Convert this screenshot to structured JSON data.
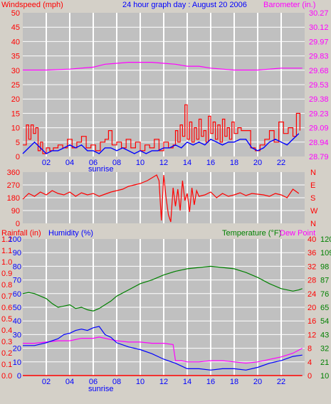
{
  "colors": {
    "background": "#d4d0c8",
    "plot_bg": "#c0c0c0",
    "grid": "#ffffff",
    "wind": "#ff0000",
    "gust": "#0000ff",
    "barometer": "#ff00ff",
    "direction": "#ff0000",
    "rain": "#ff0000",
    "humidity": "#0000ff",
    "temperature": "#008000",
    "dewpoint": "#ff00ff",
    "title": "#0000ff"
  },
  "header": {
    "windspeed_label": "Windspeed (mph)",
    "title": "24 hour graph day : August 20 2006",
    "barometer_label": "Barometer (in.)"
  },
  "bottom_header": {
    "rainfall_label": "Rainfall (in)",
    "humidity_label": "Humidity (%)",
    "temperature_label": "Temperature (°F)",
    "dewpoint_label": "Dew Point"
  },
  "sunrise_label": "sunrise",
  "chart_data": [
    {
      "type": "line",
      "title": "24 hour graph day : August 20 2006",
      "xlabel": "",
      "x_ticks": [
        "02",
        "04",
        "06",
        "08",
        "10",
        "12",
        "14",
        "16",
        "18",
        "20",
        "22"
      ],
      "xlim": [
        0,
        24
      ],
      "y_left": {
        "label": "Windspeed (mph)",
        "ticks": [
          "0",
          "5",
          "10",
          "15",
          "20",
          "25",
          "30",
          "35",
          "40",
          "45",
          "50"
        ],
        "ylim": [
          0,
          50
        ]
      },
      "y_right": {
        "label": "Barometer (in.)",
        "ticks": [
          "28.79",
          "28.94",
          "29.09",
          "29.23",
          "29.38",
          "29.53",
          "29.68",
          "29.83",
          "29.97",
          "30.12",
          "30.27"
        ],
        "ylim": [
          28.79,
          30.27
        ]
      },
      "series": [
        {
          "name": "Windspeed",
          "axis": "left",
          "x": [
            0.0,
            0.3,
            0.5,
            0.7,
            0.9,
            1.1,
            1.3,
            1.5,
            1.7,
            2.0,
            2.3,
            2.6,
            3.0,
            3.4,
            3.8,
            4.2,
            4.6,
            5.0,
            5.4,
            5.8,
            6.2,
            6.6,
            7.0,
            7.3,
            7.6,
            8.0,
            8.4,
            8.8,
            9.2,
            9.6,
            10.0,
            10.4,
            10.8,
            11.2,
            11.6,
            12.0,
            12.4,
            12.8,
            13.0,
            13.2,
            13.4,
            13.6,
            13.8,
            14.0,
            14.2,
            14.4,
            14.6,
            14.8,
            15.0,
            15.2,
            15.4,
            15.6,
            15.8,
            16.0,
            16.2,
            16.4,
            16.6,
            16.8,
            17.0,
            17.2,
            17.4,
            17.6,
            17.8,
            18.0,
            18.3,
            18.6,
            19.0,
            19.4,
            19.8,
            20.2,
            20.6,
            21.0,
            21.4,
            21.8,
            22.2,
            22.6,
            23.0,
            23.3,
            23.6
          ],
          "values": [
            4,
            11,
            6,
            11,
            8,
            10,
            2,
            5,
            1,
            3,
            2,
            3,
            4,
            3,
            6,
            3,
            5,
            7,
            3,
            4,
            2,
            5,
            6,
            9,
            4,
            5,
            3,
            6,
            3,
            5,
            2,
            4,
            3,
            6,
            2,
            5,
            3,
            4,
            9,
            5,
            11,
            7,
            18,
            6,
            12,
            5,
            10,
            6,
            13,
            7,
            9,
            5,
            14,
            8,
            12,
            6,
            11,
            5,
            13,
            7,
            10,
            6,
            12,
            8,
            10,
            9,
            9,
            3,
            2,
            4,
            6,
            9,
            5,
            12,
            8,
            10,
            7,
            15,
            9
          ]
        },
        {
          "name": "Gust",
          "axis": "left",
          "x": [
            0.0,
            0.5,
            1.0,
            1.5,
            2.0,
            2.5,
            3.0,
            3.5,
            4.0,
            4.5,
            5.0,
            5.5,
            6.0,
            6.5,
            7.0,
            7.5,
            8.0,
            8.5,
            9.0,
            9.5,
            10.0,
            10.5,
            11.0,
            11.5,
            12.0,
            12.5,
            13.0,
            13.5,
            14.0,
            14.5,
            15.0,
            15.5,
            16.0,
            16.5,
            17.0,
            17.5,
            18.0,
            18.5,
            19.0,
            19.5,
            20.0,
            20.5,
            21.0,
            21.5,
            22.0,
            22.5,
            23.0,
            23.5
          ],
          "values": [
            1,
            3,
            5,
            3,
            1,
            2,
            2,
            3,
            4,
            3,
            4,
            2,
            2,
            1,
            3,
            3,
            2,
            3,
            2,
            1,
            2,
            1,
            2,
            2,
            3,
            3,
            4,
            3,
            5,
            4,
            5,
            4,
            6,
            5,
            4,
            5,
            5,
            6,
            6,
            3,
            2,
            3,
            5,
            6,
            5,
            4,
            6,
            8
          ]
        },
        {
          "name": "Barometer",
          "axis": "right",
          "x": [
            0.0,
            2.0,
            4.0,
            6.0,
            7.0,
            8.0,
            9.0,
            10.0,
            11.0,
            12.0,
            13.0,
            14.0,
            15.0,
            16.0,
            17.0,
            18.0,
            19.0,
            20.0,
            21.0,
            22.0,
            23.0,
            23.8
          ],
          "values": [
            29.68,
            29.68,
            29.69,
            29.71,
            29.74,
            29.75,
            29.76,
            29.76,
            29.76,
            29.75,
            29.74,
            29.72,
            29.72,
            29.7,
            29.69,
            29.68,
            29.68,
            29.68,
            29.69,
            29.7,
            29.7,
            29.7
          ]
        }
      ]
    },
    {
      "type": "line",
      "title": "",
      "x_ticks": [],
      "xlim": [
        0,
        24
      ],
      "y_left": {
        "label": "",
        "ticks": [
          "0",
          "90",
          "180",
          "270",
          "360"
        ],
        "ylim": [
          0,
          360
        ]
      },
      "y_right": {
        "label": "",
        "ticks": [
          "N",
          "W",
          "S",
          "E",
          "N"
        ]
      },
      "series": [
        {
          "name": "Wind direction",
          "axis": "left",
          "x": [
            0.0,
            0.5,
            1.0,
            1.5,
            2.0,
            2.5,
            3.0,
            3.5,
            4.0,
            4.5,
            5.0,
            5.5,
            6.0,
            6.5,
            7.0,
            7.5,
            8.0,
            8.5,
            9.0,
            9.5,
            10.0,
            10.3,
            10.6,
            10.8,
            11.0,
            11.2,
            11.4,
            11.6,
            11.8,
            12.0,
            12.2,
            12.4,
            12.6,
            12.8,
            13.0,
            13.2,
            13.4,
            13.6,
            13.8,
            14.0,
            14.2,
            14.4,
            14.6,
            14.8,
            15.0,
            15.5,
            16.0,
            16.5,
            17.0,
            17.5,
            18.0,
            18.5,
            19.0,
            19.5,
            20.0,
            20.5,
            21.0,
            21.5,
            22.0,
            22.5,
            23.0,
            23.5
          ],
          "values": [
            170,
            210,
            190,
            220,
            200,
            230,
            210,
            200,
            220,
            190,
            215,
            200,
            210,
            190,
            205,
            220,
            230,
            240,
            260,
            270,
            280,
            290,
            300,
            310,
            320,
            330,
            340,
            300,
            20,
            340,
            180,
            60,
            10,
            250,
            120,
            240,
            90,
            300,
            160,
            210,
            80,
            250,
            130,
            230,
            190,
            200,
            220,
            180,
            210,
            190,
            200,
            215,
            195,
            210,
            205,
            200,
            190,
            210,
            200,
            180,
            240,
            210
          ]
        }
      ]
    },
    {
      "type": "line",
      "title": "",
      "x_ticks": [
        "02",
        "04",
        "06",
        "08",
        "10",
        "12",
        "14",
        "16",
        "18",
        "20",
        "22"
      ],
      "xlim": [
        0,
        24
      ],
      "y_axes": [
        {
          "label": "Rainfall (in)",
          "ticks": [
            "0.0",
            "0.1",
            "0.2",
            "0.3",
            "0.4",
            "0.5",
            "0.6",
            "0.7",
            "0.8",
            "0.9",
            "1.0",
            "1.1",
            "1.2"
          ],
          "ylim": [
            0,
            1.2
          ]
        },
        {
          "label": "Humidity (%)",
          "ticks": [
            "0",
            "10",
            "20",
            "30",
            "40",
            "50",
            "60",
            "70",
            "80",
            "90",
            "100"
          ],
          "ylim": [
            0,
            100
          ]
        },
        {
          "label": "",
          "ticks": [
            "0",
            "4",
            "8",
            "12",
            "16",
            "20",
            "24",
            "28",
            "32",
            "36",
            "40"
          ]
        },
        {
          "label": "Temperature (°F)",
          "ticks": [
            "10",
            "21",
            "32",
            "43",
            "54",
            "65",
            "76",
            "87",
            "98",
            "109",
            "120"
          ],
          "ylim": [
            10,
            120
          ]
        }
      ],
      "series": [
        {
          "name": "Rainfall",
          "axis": "Rainfall (in)",
          "x": [
            0.0,
            23.8
          ],
          "values": [
            0.0,
            0.0
          ]
        },
        {
          "name": "Humidity",
          "axis": "Humidity (%)",
          "x": [
            0.0,
            1.0,
            2.0,
            3.0,
            3.5,
            4.0,
            4.5,
            5.0,
            5.5,
            6.0,
            6.5,
            7.0,
            7.5,
            8.0,
            9.0,
            10.0,
            11.0,
            12.0,
            13.0,
            13.5,
            14.0,
            15.0,
            16.0,
            17.0,
            18.0,
            19.0,
            20.0,
            21.0,
            22.0,
            23.0,
            23.8
          ],
          "values": [
            22,
            22,
            24,
            27,
            30,
            31,
            33,
            34,
            33,
            35,
            36,
            30,
            28,
            24,
            21,
            19,
            16,
            12,
            9,
            7,
            5,
            5,
            4,
            5,
            5,
            4,
            6,
            9,
            11,
            14,
            15
          ]
        },
        {
          "name": "Temperature",
          "axis": "Temperature (°F)",
          "x": [
            0.0,
            0.5,
            1.0,
            1.5,
            2.0,
            2.5,
            3.0,
            3.5,
            4.0,
            4.5,
            5.0,
            5.5,
            6.0,
            6.5,
            7.0,
            7.5,
            8.0,
            9.0,
            10.0,
            11.0,
            12.0,
            13.0,
            14.0,
            15.0,
            16.0,
            17.0,
            18.0,
            19.0,
            20.0,
            21.0,
            22.0,
            22.5,
            23.0,
            23.5,
            23.8
          ],
          "values": [
            76,
            77,
            76,
            74,
            72,
            68,
            65,
            66,
            67,
            64,
            65,
            63,
            62,
            64,
            67,
            70,
            74,
            79,
            84,
            87,
            91,
            94,
            96,
            97,
            98,
            97,
            96,
            93,
            89,
            84,
            80,
            79,
            78,
            79,
            80
          ]
        },
        {
          "name": "Dew Point",
          "axis": "Temperature (°F)",
          "x": [
            0.0,
            1.0,
            2.0,
            3.0,
            4.0,
            5.0,
            6.0,
            6.5,
            7.0,
            7.5,
            8.0,
            9.0,
            10.0,
            11.0,
            12.0,
            12.8,
            13.0,
            13.5,
            14.0,
            15.0,
            16.0,
            17.0,
            18.0,
            19.0,
            20.0,
            21.0,
            22.0,
            23.0,
            23.8
          ],
          "values": [
            36,
            36,
            37,
            38,
            38,
            40,
            40,
            41,
            40,
            39,
            38,
            37,
            37,
            36,
            36,
            35,
            22,
            22,
            21,
            21,
            22,
            22,
            21,
            20,
            21,
            23,
            25,
            28,
            32
          ]
        }
      ]
    }
  ]
}
